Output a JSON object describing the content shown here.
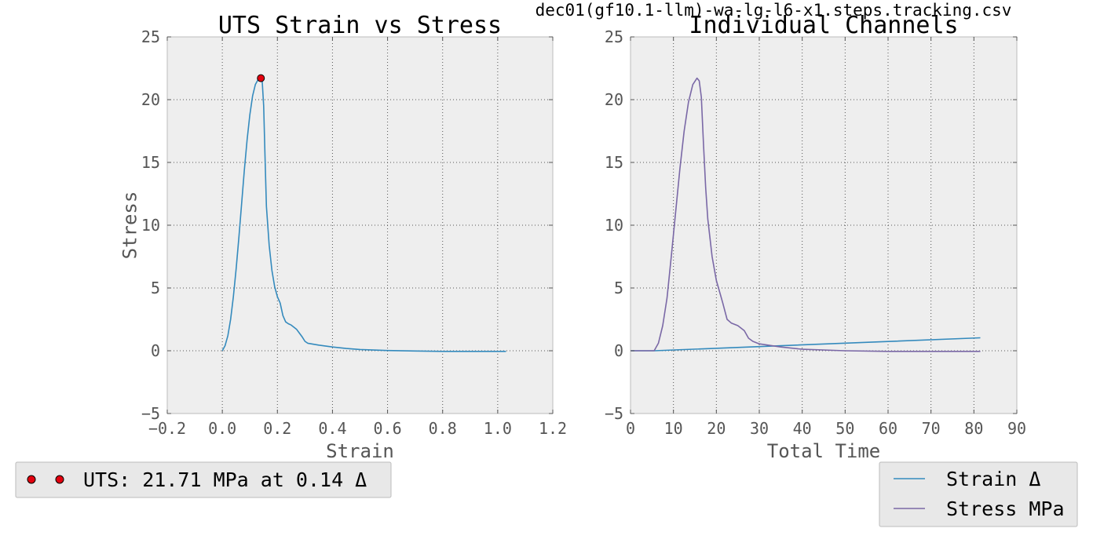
{
  "figure": {
    "suptitle": "dec01(gf10.1-llm)-wa-lg-l6-x1.steps.tracking.csv"
  },
  "colors": {
    "panel_bg": "#eeeeee",
    "grid": "#555555",
    "strain_line": "#348abd",
    "stress_line": "#7a68a6",
    "uts_marker": "#e3000f",
    "legend_bg": "#e8e8e8"
  },
  "chart_data": [
    {
      "type": "line",
      "title": "UTS Strain vs Stress",
      "xlabel": "Strain",
      "ylabel": "Stress",
      "xlim": [
        -0.2,
        1.2
      ],
      "ylim": [
        -5,
        25
      ],
      "xticks": [
        -0.2,
        0.0,
        0.2,
        0.4,
        0.6,
        0.8,
        1.0,
        1.2
      ],
      "xtick_labels": [
        "−0.2",
        "0.0",
        "0.2",
        "0.4",
        "0.6",
        "0.8",
        "1.0",
        "1.2"
      ],
      "yticks": [
        -5,
        0,
        5,
        10,
        15,
        20,
        25
      ],
      "ytick_labels": [
        "−5",
        "0",
        "5",
        "10",
        "15",
        "20",
        "25"
      ],
      "grid": true,
      "legend_placement": "below-left",
      "series": [
        {
          "color": "#348abd",
          "x": [
            0.0,
            0.01,
            0.02,
            0.03,
            0.04,
            0.05,
            0.06,
            0.07,
            0.08,
            0.09,
            0.1,
            0.11,
            0.12,
            0.13,
            0.14,
            0.145,
            0.15,
            0.155,
            0.16,
            0.17,
            0.18,
            0.19,
            0.2,
            0.21,
            0.22,
            0.23,
            0.24,
            0.25,
            0.27,
            0.29,
            0.3,
            0.31,
            0.35,
            0.4,
            0.45,
            0.5,
            0.6,
            0.7,
            0.8,
            0.9,
            1.0,
            1.03
          ],
          "y": [
            0.0,
            0.4,
            1.2,
            2.5,
            4.3,
            6.5,
            9.0,
            11.7,
            14.4,
            16.8,
            18.8,
            20.3,
            21.2,
            21.6,
            21.71,
            21.4,
            19.5,
            15.5,
            11.5,
            8.4,
            6.4,
            5.1,
            4.3,
            3.8,
            2.8,
            2.3,
            2.15,
            2.05,
            1.7,
            1.1,
            0.75,
            0.6,
            0.45,
            0.3,
            0.18,
            0.1,
            0.02,
            -0.02,
            -0.05,
            -0.05,
            -0.05,
            -0.05
          ]
        },
        {
          "type": "scatter",
          "color": "#e3000f",
          "x": [
            0.14
          ],
          "y": [
            21.71
          ]
        }
      ],
      "legend": {
        "label": "UTS: 21.71 MPa at 0.14 Δ"
      }
    },
    {
      "type": "line",
      "title": "Individual Channels",
      "xlabel": "Total Time",
      "ylabel": "",
      "xlim": [
        0,
        90
      ],
      "ylim": [
        -5,
        25
      ],
      "xticks": [
        0,
        10,
        20,
        30,
        40,
        50,
        60,
        70,
        80,
        90
      ],
      "xtick_labels": [
        "0",
        "10",
        "20",
        "30",
        "40",
        "50",
        "60",
        "70",
        "80",
        "90"
      ],
      "yticks": [
        -5,
        0,
        5,
        10,
        15,
        20,
        25
      ],
      "ytick_labels": [
        "−5",
        "0",
        "5",
        "10",
        "15",
        "20",
        "25"
      ],
      "grid": true,
      "legend_placement": "below-right",
      "series": [
        {
          "name": "Strain Δ",
          "color": "#348abd",
          "x": [
            0,
            5.5,
            81.5
          ],
          "y": [
            0.0,
            0.0,
            1.03
          ]
        },
        {
          "name": "Stress MPa",
          "color": "#7a68a6",
          "x": [
            0,
            5.5,
            6.5,
            7.5,
            8.5,
            9.5,
            10.5,
            11.5,
            12.5,
            13.5,
            14.5,
            15.5,
            16.0,
            16.5,
            17.0,
            17.5,
            18.0,
            19.0,
            20.0,
            21.0,
            21.5,
            22.5,
            23.5,
            25.0,
            26.5,
            27.5,
            28.5,
            30.0,
            35.0,
            40.0,
            50.0,
            60.0,
            70.0,
            81.5
          ],
          "y": [
            0.0,
            0.0,
            0.6,
            2.0,
            4.2,
            7.5,
            11.0,
            14.5,
            17.5,
            19.8,
            21.2,
            21.71,
            21.5,
            20.2,
            16.5,
            13.0,
            10.5,
            7.5,
            5.6,
            4.4,
            3.8,
            2.5,
            2.2,
            2.0,
            1.6,
            1.0,
            0.75,
            0.55,
            0.3,
            0.12,
            0.0,
            -0.05,
            -0.05,
            -0.05
          ]
        }
      ]
    }
  ]
}
